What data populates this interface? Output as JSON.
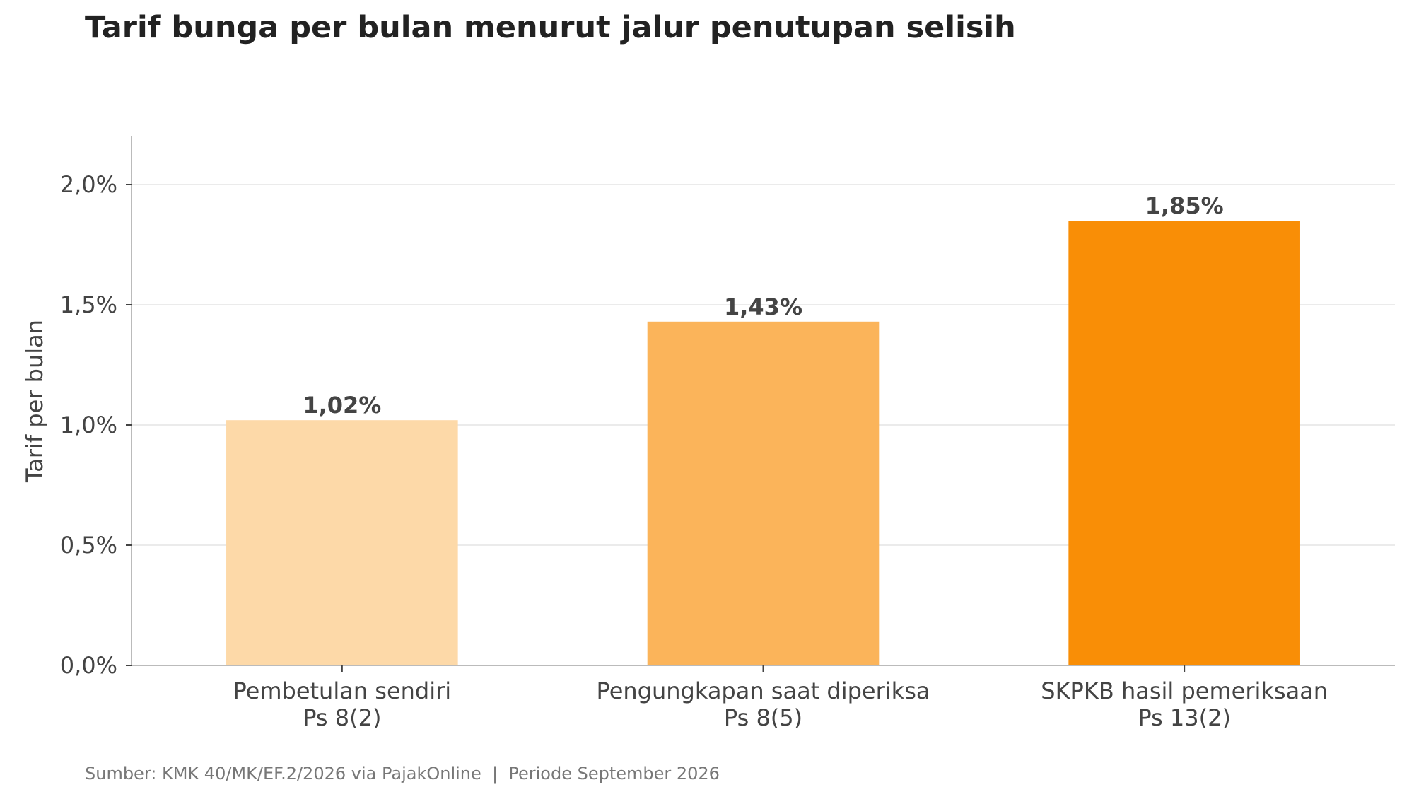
{
  "chart_data": {
    "type": "bar",
    "title": "Tarif bunga per bulan menurut jalur penutupan selisih",
    "ylabel": "Tarif per bulan",
    "xlabel": "",
    "ylim": [
      0,
      2.2
    ],
    "y_ticks": [
      {
        "value": 0.0,
        "label": "0,0%"
      },
      {
        "value": 0.5,
        "label": "0,5%"
      },
      {
        "value": 1.0,
        "label": "1,0%"
      },
      {
        "value": 1.5,
        "label": "1,5%"
      },
      {
        "value": 2.0,
        "label": "2,0%"
      }
    ],
    "categories": [
      [
        "Pembetulan sendiri",
        "Ps 8(2)"
      ],
      [
        "Pengungkapan saat diperiksa",
        "Ps 8(5)"
      ],
      [
        "SKPKB hasil pemeriksaan",
        "Ps 13(2)"
      ]
    ],
    "values": [
      1.02,
      1.43,
      1.85
    ],
    "value_labels": [
      "1,02%",
      "1,43%",
      "1,85%"
    ],
    "colors": [
      "#FDD9A8",
      "#FBB45A",
      "#F98E06"
    ],
    "grid": "horizontal",
    "legend": "none",
    "source": "Sumber: KMK 40/MK/EF.2/2026 via PajakOnline  |  Periode September 2026"
  }
}
